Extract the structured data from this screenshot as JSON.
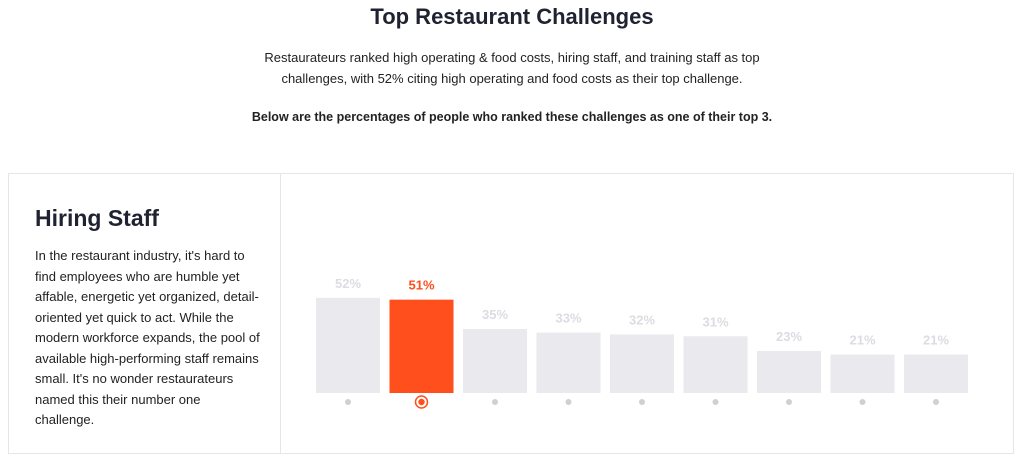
{
  "header": {
    "title": "Top Restaurant Challenges",
    "subtitle": "Restaurateurs ranked high operating & food costs, hiring staff, and training staff as top challenges, with 52% citing high operating and food costs as their top challenge.",
    "note": "Below are the percentages of people who ranked these challenges as one of their top 3."
  },
  "panel": {
    "title": "Hiring Staff",
    "text": "In the restaurant industry, it's hard to find employees who are humble yet affable, energetic yet organized, detail-oriented yet quick to act. While the modern workforce expands, the pool of available high-performing staff remains small. It's no wonder restaurateurs named this their number one challenge."
  },
  "chart_data": {
    "type": "bar",
    "values": [
      52,
      51,
      35,
      33,
      32,
      31,
      23,
      21,
      21
    ],
    "value_labels": [
      "52%",
      "51%",
      "35%",
      "33%",
      "32%",
      "31%",
      "23%",
      "21%",
      "21%"
    ],
    "colors": [
      "#e9e9ee",
      "#ff4f1c",
      "#e9e9ee",
      "#e9e9ee",
      "#e9e9ee",
      "#e9e9ee",
      "#e9e9ee",
      "#e9e9ee",
      "#e9e9ee"
    ],
    "highlight_color": "#ff4f1c"
  }
}
